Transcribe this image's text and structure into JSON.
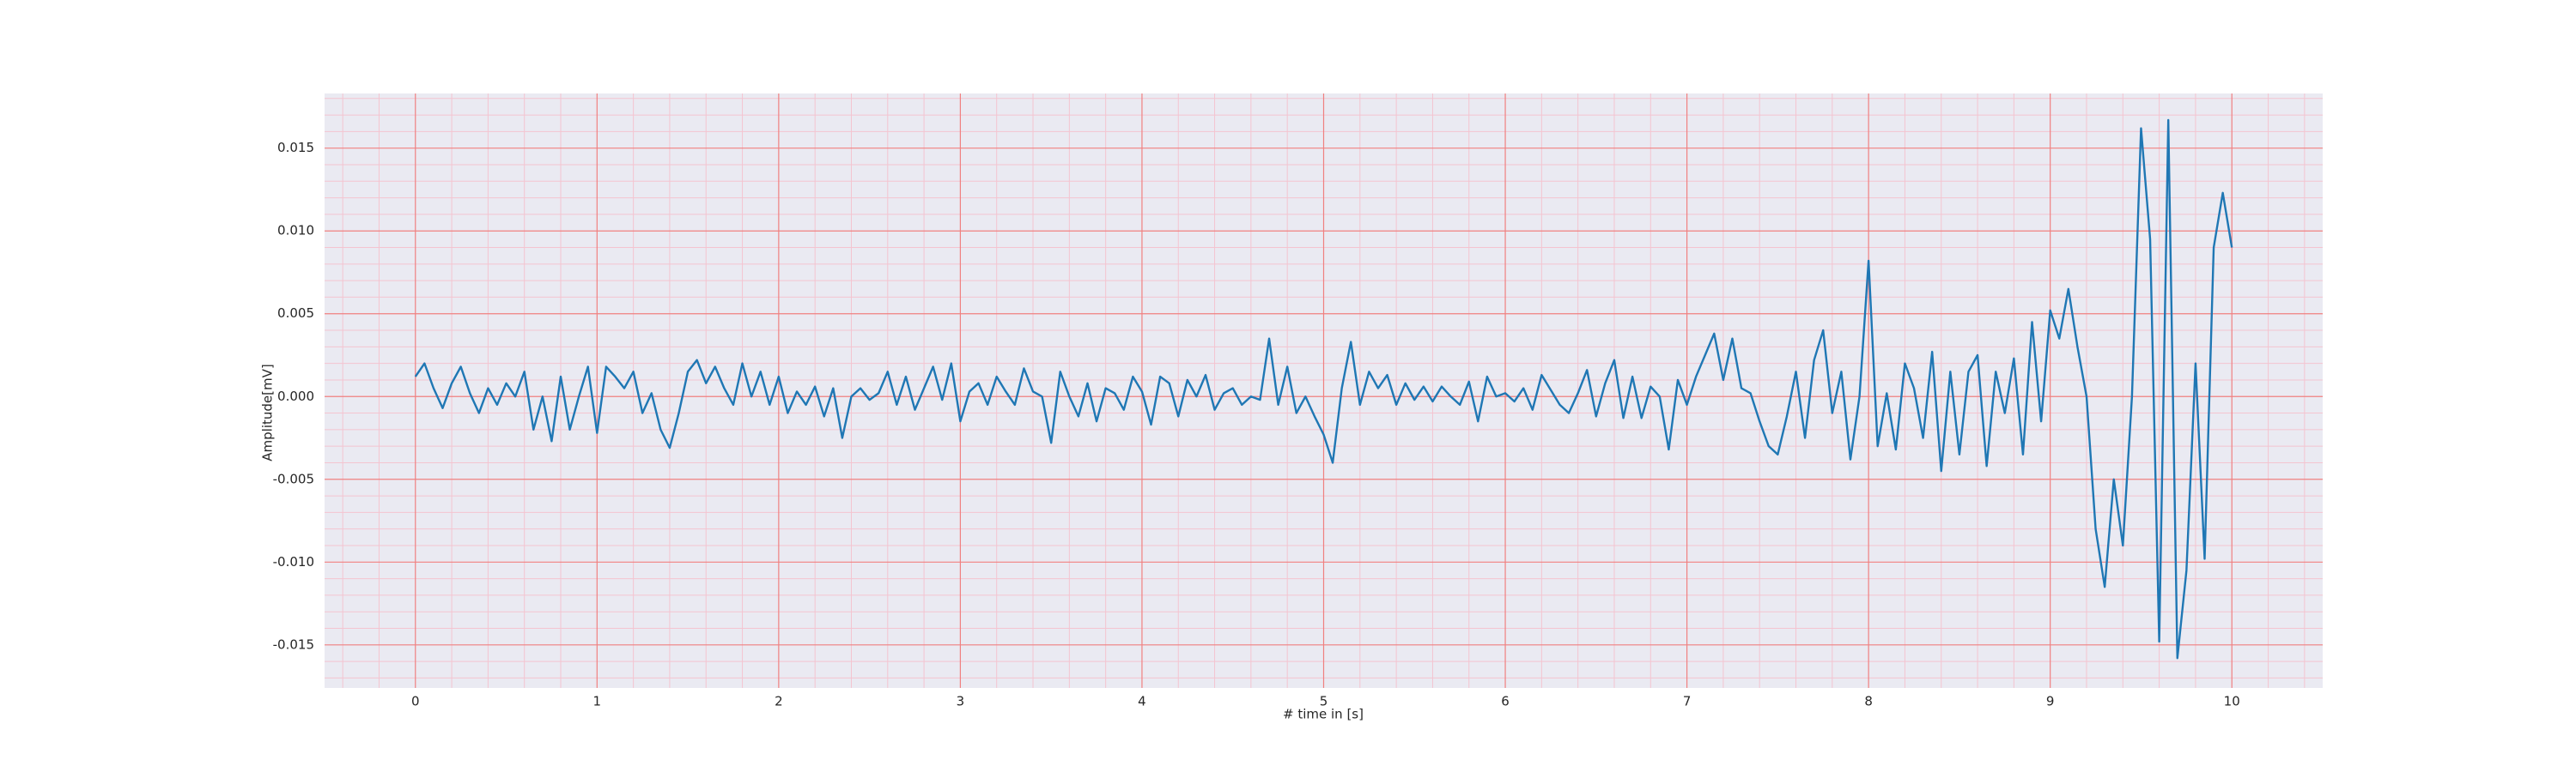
{
  "chart_data": {
    "type": "line",
    "xlabel": "# time in [s]",
    "ylabel": "Amplitude[mV]",
    "xlim": [
      -0.5,
      10.5
    ],
    "ylim": [
      -0.0176,
      0.0183
    ],
    "xticks": [
      0,
      1,
      2,
      3,
      4,
      5,
      6,
      7,
      8,
      9,
      10
    ],
    "yticks": [
      -0.015,
      {
        "value": -0.01,
        "label": "-0.010"
      },
      -0.005,
      {
        "value": 0,
        "label": "0.000"
      },
      0.005,
      {
        "value": 0.01,
        "label": "0.010"
      },
      0.015
    ],
    "grid": true,
    "minor_grid": true,
    "background": "#eaeaf2",
    "grid_color": "#f08080",
    "minor_grid_color": "#f4c4d0",
    "series": [
      {
        "color": "#1f77b4",
        "x": [
          0,
          0.05,
          0.1,
          0.15,
          0.2,
          0.25,
          0.3,
          0.35,
          0.4,
          0.45,
          0.5,
          0.55,
          0.6,
          0.65,
          0.7,
          0.75,
          0.8,
          0.85,
          0.9,
          0.95,
          1,
          1.05,
          1.1,
          1.15,
          1.2,
          1.25,
          1.3,
          1.35,
          1.4,
          1.45,
          1.5,
          1.55,
          1.6,
          1.65,
          1.7,
          1.75,
          1.8,
          1.85,
          1.9,
          1.95,
          2,
          2.05,
          2.1,
          2.15,
          2.2,
          2.25,
          2.3,
          2.35,
          2.4,
          2.45,
          2.5,
          2.55,
          2.6,
          2.65,
          2.7,
          2.75,
          2.8,
          2.85,
          2.9,
          2.95,
          3,
          3.05,
          3.1,
          3.15,
          3.2,
          3.25,
          3.3,
          3.35,
          3.4,
          3.45,
          3.5,
          3.55,
          3.6,
          3.65,
          3.7,
          3.75,
          3.8,
          3.85,
          3.9,
          3.95,
          4,
          4.05,
          4.1,
          4.15,
          4.2,
          4.25,
          4.3,
          4.35,
          4.4,
          4.45,
          4.5,
          4.55,
          4.6,
          4.65,
          4.7,
          4.75,
          4.8,
          4.85,
          4.9,
          4.95,
          5,
          5.05,
          5.1,
          5.15,
          5.2,
          5.25,
          5.3,
          5.35,
          5.4,
          5.45,
          5.5,
          5.55,
          5.6,
          5.65,
          5.7,
          5.75,
          5.8,
          5.85,
          5.9,
          5.95,
          6,
          6.05,
          6.1,
          6.15,
          6.2,
          6.25,
          6.3,
          6.35,
          6.4,
          6.45,
          6.5,
          6.55,
          6.6,
          6.65,
          6.7,
          6.75,
          6.8,
          6.85,
          6.9,
          6.95,
          7,
          7.05,
          7.1,
          7.15,
          7.2,
          7.25,
          7.3,
          7.35,
          7.4,
          7.45,
          7.5,
          7.55,
          7.6,
          7.65,
          7.7,
          7.75,
          7.8,
          7.85,
          7.9,
          7.95,
          8,
          8.05,
          8.1,
          8.15,
          8.2,
          8.25,
          8.3,
          8.35,
          8.4,
          8.45,
          8.5,
          8.55,
          8.6,
          8.65,
          8.7,
          8.75,
          8.8,
          8.85,
          8.9,
          8.95,
          9,
          9.05,
          9.1,
          9.15,
          9.2,
          9.25,
          9.3,
          9.35,
          9.4,
          9.45,
          9.5,
          9.55,
          9.6,
          9.65,
          9.7,
          9.75,
          9.8,
          9.85,
          9.9,
          9.95,
          10
        ],
        "values": [
          0.0012,
          0.002,
          0.0005,
          -0.0007,
          0.0008,
          0.0018,
          0.0002,
          -0.001,
          0.0005,
          -0.0005,
          0.0008,
          0,
          0.0015,
          -0.002,
          0,
          -0.0027,
          0.0012,
          -0.002,
          0,
          0.0018,
          -0.0022,
          0.0018,
          0.0012,
          0.0005,
          0.0015,
          -0.001,
          0.0002,
          -0.002,
          -0.0031,
          -0.001,
          0.0015,
          0.0022,
          0.0008,
          0.0018,
          0.0005,
          -0.0005,
          0.002,
          0,
          0.0015,
          -0.0005,
          0.0012,
          -0.001,
          0.0003,
          -0.0005,
          0.0006,
          -0.0012,
          0.0005,
          -0.0025,
          0,
          0.0005,
          -0.0002,
          0.0002,
          0.0015,
          -0.0005,
          0.0012,
          -0.0008,
          0.0005,
          0.0018,
          -0.0002,
          0.002,
          -0.0015,
          0.0003,
          0.0008,
          -0.0005,
          0.0012,
          0.0003,
          -0.0005,
          0.0017,
          0.0003,
          0,
          -0.0028,
          0.0015,
          0,
          -0.0012,
          0.0008,
          -0.0015,
          0.0005,
          0.0002,
          -0.0008,
          0.0012,
          0.0003,
          -0.0017,
          0.0012,
          0.0008,
          -0.0012,
          0.001,
          0,
          0.0013,
          -0.0008,
          0.0002,
          0.0005,
          -0.0005,
          0,
          -0.0002,
          0.0035,
          -0.0005,
          0.0018,
          -0.001,
          0,
          -0.0012,
          -0.0023,
          -0.004,
          0.0005,
          0.0033,
          -0.0005,
          0.0015,
          0.0005,
          0.0013,
          -0.0005,
          0.0008,
          -0.0002,
          0.0006,
          -0.0003,
          0.0006,
          0,
          -0.0005,
          0.0009,
          -0.0015,
          0.0012,
          0,
          0.0002,
          -0.0003,
          0.0005,
          -0.0008,
          0.0013,
          0.0004,
          -0.0005,
          -0.001,
          0.0002,
          0.0016,
          -0.0012,
          0.0008,
          0.0022,
          -0.0013,
          0.0012,
          -0.0013,
          0.0006,
          0,
          -0.0032,
          0.001,
          -0.0005,
          0.0012,
          0.0025,
          0.0038,
          0.001,
          0.0035,
          0.0005,
          0.0002,
          -0.0015,
          -0.003,
          -0.0035,
          -0.0012,
          0.0015,
          -0.0025,
          0.0022,
          0.004,
          -0.001,
          0.0015,
          -0.0038,
          0,
          0.0082,
          -0.003,
          0.0002,
          -0.0032,
          0.002,
          0.0005,
          -0.0025,
          0.0027,
          -0.0045,
          0.0015,
          -0.0035,
          0.0015,
          0.0025,
          -0.0042,
          0.0015,
          -0.001,
          0.0023,
          -0.0035,
          0.0045,
          -0.0015,
          0.0052,
          0.0035,
          0.0065,
          0.003,
          0,
          -0.008,
          -0.0115,
          -0.005,
          -0.009,
          0,
          0.0162,
          0.0095,
          -0.0148,
          0.0167,
          -0.0158,
          -0.0105,
          0.002,
          -0.0098,
          0.009,
          0.0123,
          0.009
        ]
      }
    ]
  }
}
